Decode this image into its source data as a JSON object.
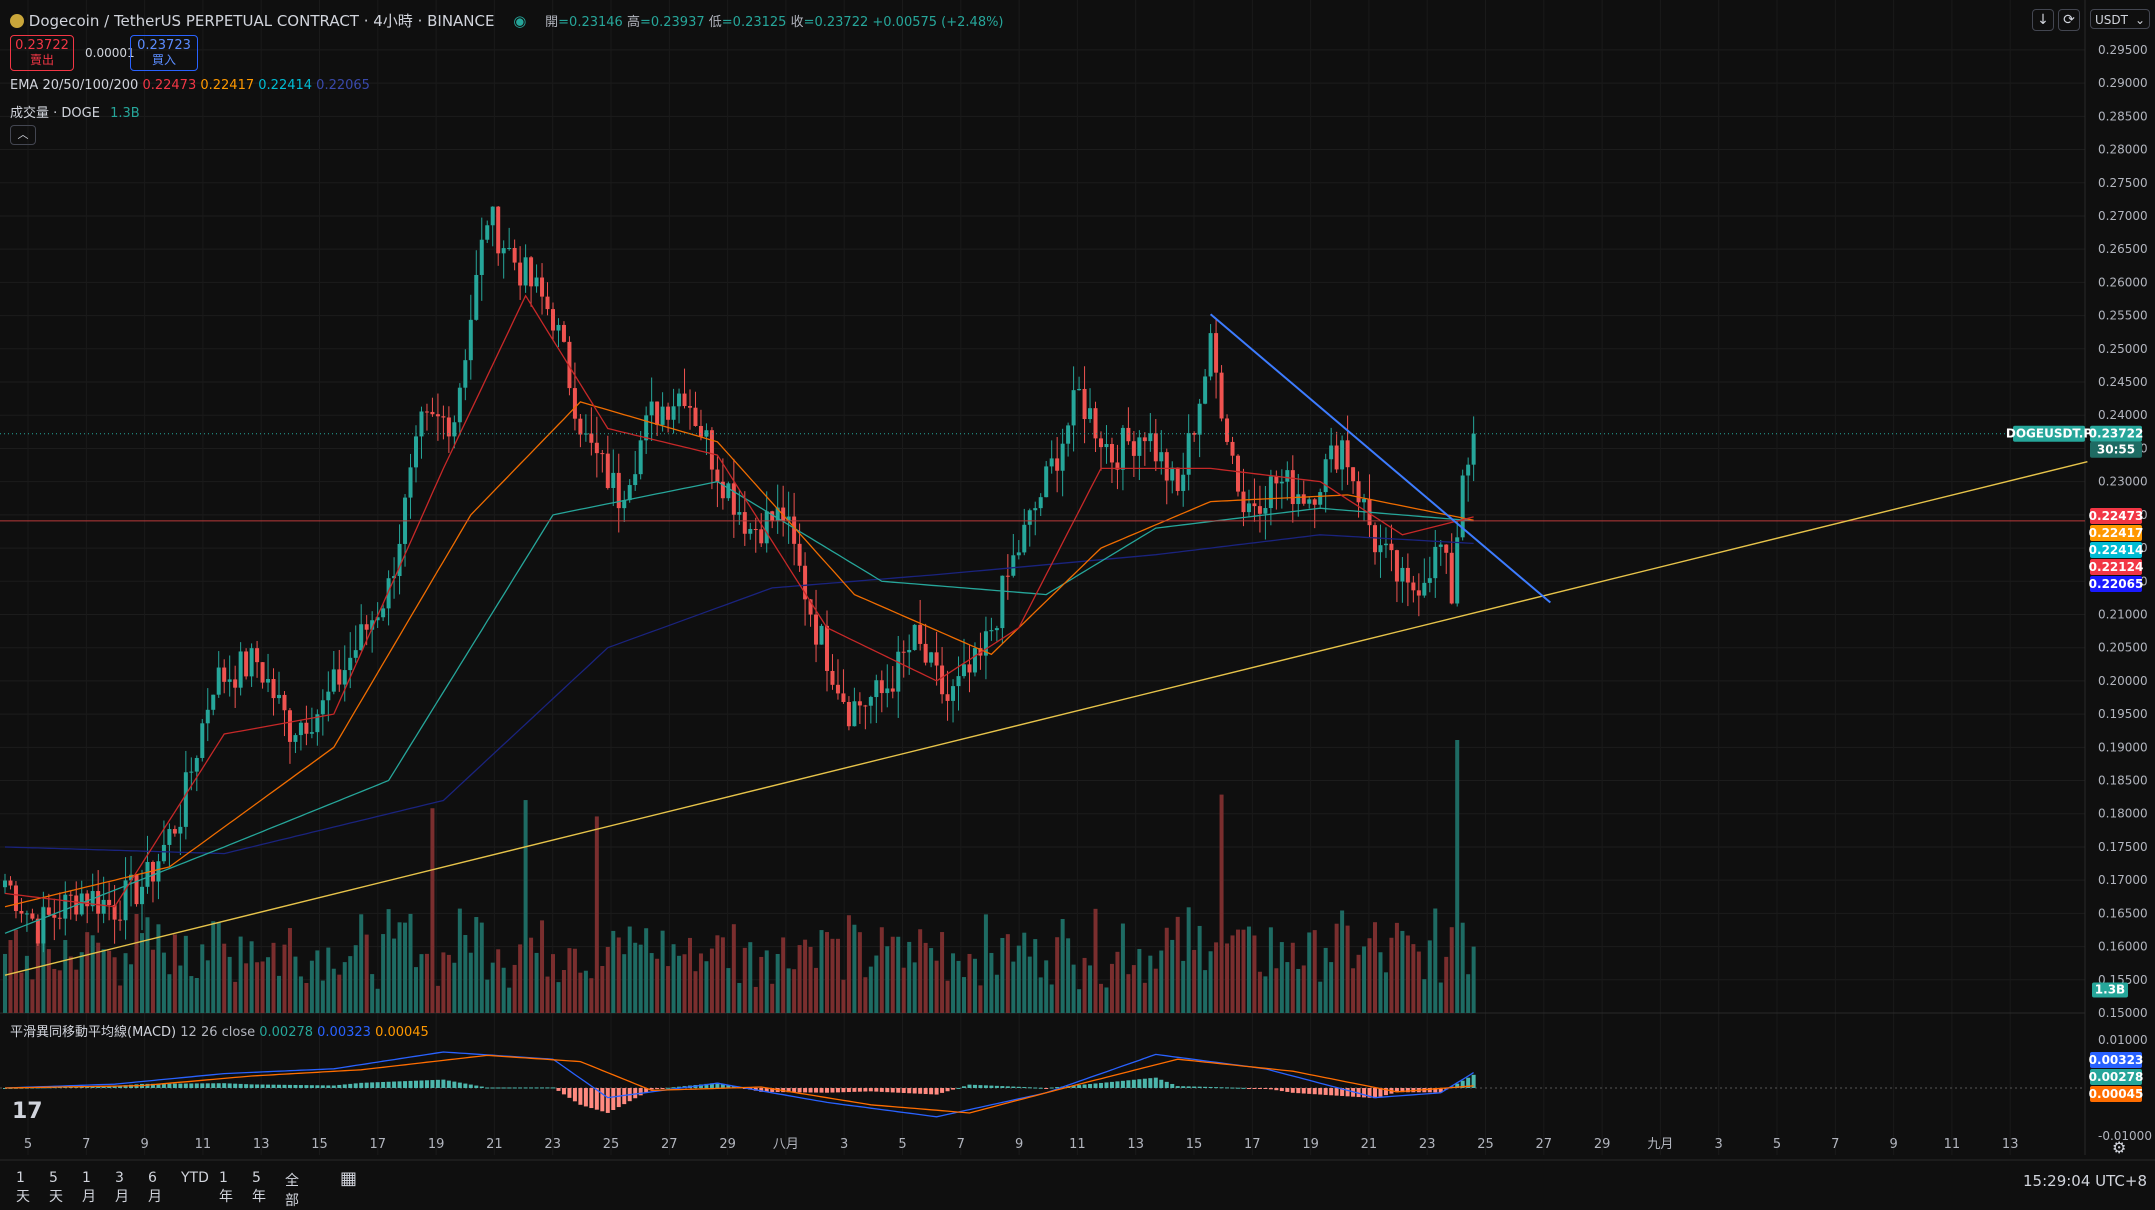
{
  "header": {
    "symbol": "Dogecoin / TetherUS PERPETUAL CONTRACT · 4小時 · BINANCE",
    "ohlc": {
      "open_label": "開",
      "open": "=0.23146",
      "high_label": "高",
      "high": "=0.23937",
      "low_label": "低",
      "low": "=0.23125",
      "close_label": "收",
      "close": "=0.23722",
      "change": "+0.00575 (+2.48%)"
    },
    "sell_price": "0.23722",
    "sell_label": "賣出",
    "spread": "0.00001",
    "buy_price": "0.23723",
    "buy_label": "買入",
    "ema_label": "EMA 20/50/100/200",
    "ema_values": [
      "0.22473",
      "0.22417",
      "0.22414",
      "0.22065"
    ],
    "volume_label": "成交量 · DOGE",
    "volume_value": "1.3B",
    "currency": "USDT"
  },
  "macd": {
    "label": "平滑異同移動平均線(MACD)",
    "params": "12 26 close",
    "values": [
      "0.00278",
      "0.00323",
      "0.00045"
    ]
  },
  "price_axis": {
    "ticks": [
      "0.29500",
      "0.29000",
      "0.28500",
      "0.28000",
      "0.27500",
      "0.27000",
      "0.26500",
      "0.26000",
      "0.25500",
      "0.25000",
      "0.24500",
      "0.24000",
      "0.23500",
      "0.23000",
      "0.22500",
      "0.22000",
      "0.21500",
      "0.21000",
      "0.20500",
      "0.20000",
      "0.19500",
      "0.19000",
      "0.18500",
      "0.18000",
      "0.17500",
      "0.17000",
      "0.16500",
      "0.16000",
      "0.15500",
      "0.15000"
    ],
    "symbol_tag": "DOGEUSDT.P",
    "last_price": "0.23722",
    "countdown": "30:55",
    "labels": [
      {
        "text": "0.22473",
        "color": "#f23645",
        "value": 0.22473
      },
      {
        "text": "0.22417",
        "color": "#ff9800",
        "value": 0.22417
      },
      {
        "text": "0.22414",
        "color": "#00bcd4",
        "value": 0.22414
      },
      {
        "text": "0.22124",
        "color": "#f23645",
        "value": 0.22124
      },
      {
        "text": "0.22065",
        "color": "#1a1aff",
        "value": 0.22065
      }
    ],
    "volume_tag": "1.3B"
  },
  "macd_axis": {
    "ticks": [
      "0.01000",
      "-0.01000"
    ],
    "labels": [
      {
        "text": "0.00323",
        "color": "#2962ff"
      },
      {
        "text": "0.00278",
        "color": "#26a69a"
      },
      {
        "text": "0.00045",
        "color": "#ff6d00"
      }
    ]
  },
  "time_axis": [
    "5",
    "7",
    "9",
    "11",
    "13",
    "15",
    "17",
    "19",
    "21",
    "23",
    "25",
    "27",
    "29",
    "八月",
    "3",
    "5",
    "7",
    "9",
    "11",
    "13",
    "15",
    "17",
    "19",
    "21",
    "23",
    "25",
    "27",
    "29",
    "九月",
    "3",
    "5",
    "7",
    "9",
    "11",
    "13"
  ],
  "bottom_bar": {
    "ranges": [
      "1天",
      "5天",
      "1月",
      "3月",
      "6月",
      "YTD",
      "1年",
      "5年",
      "全部"
    ],
    "clock": "15:29:04 UTC+8"
  },
  "colors": {
    "up": "#26a69a",
    "down": "#ef5350",
    "ema20": "#c62828",
    "ema50": "#ef6c00",
    "ema100": "#26a69a",
    "ema200": "#1a237e",
    "trend_up": "#e6c34a",
    "trend_down": "#3d7cff"
  },
  "chart_data": {
    "type": "candlestick",
    "title": "Dogecoin / TetherUS PERPETUAL CONTRACT · 4小時 · BINANCE",
    "ylim": [
      0.15,
      0.298
    ],
    "x_tick_labels": [
      "5",
      "7",
      "9",
      "11",
      "13",
      "15",
      "17",
      "19",
      "21",
      "23",
      "25",
      "27",
      "29",
      "八月",
      "3",
      "5",
      "7",
      "9",
      "11",
      "13",
      "15",
      "17",
      "19",
      "21",
      "23",
      "25",
      "27",
      "29",
      "九月",
      "3",
      "5",
      "7",
      "9",
      "11",
      "13"
    ],
    "price_anchors": [
      [
        0,
        0.17
      ],
      [
        6,
        0.163
      ],
      [
        14,
        0.168
      ],
      [
        20,
        0.166
      ],
      [
        26,
        0.17
      ],
      [
        32,
        0.18
      ],
      [
        38,
        0.2
      ],
      [
        46,
        0.203
      ],
      [
        52,
        0.193
      ],
      [
        58,
        0.196
      ],
      [
        64,
        0.205
      ],
      [
        70,
        0.214
      ],
      [
        76,
        0.238
      ],
      [
        82,
        0.24
      ],
      [
        88,
        0.27
      ],
      [
        94,
        0.262
      ],
      [
        100,
        0.255
      ],
      [
        106,
        0.236
      ],
      [
        112,
        0.228
      ],
      [
        118,
        0.24
      ],
      [
        124,
        0.244
      ],
      [
        130,
        0.232
      ],
      [
        136,
        0.223
      ],
      [
        142,
        0.225
      ],
      [
        148,
        0.208
      ],
      [
        154,
        0.196
      ],
      [
        160,
        0.198
      ],
      [
        166,
        0.206
      ],
      [
        172,
        0.197
      ],
      [
        178,
        0.203
      ],
      [
        184,
        0.218
      ],
      [
        190,
        0.23
      ],
      [
        196,
        0.243
      ],
      [
        202,
        0.234
      ],
      [
        208,
        0.238
      ],
      [
        214,
        0.228
      ],
      [
        220,
        0.25
      ],
      [
        226,
        0.226
      ],
      [
        232,
        0.23
      ],
      [
        238,
        0.228
      ],
      [
        244,
        0.236
      ],
      [
        250,
        0.221
      ],
      [
        256,
        0.213
      ],
      [
        262,
        0.22
      ],
      [
        264,
        0.213
      ],
      [
        266,
        0.232
      ],
      [
        268,
        0.2372
      ]
    ],
    "ema20_anchors": [
      [
        0,
        0.168
      ],
      [
        20,
        0.166
      ],
      [
        40,
        0.192
      ],
      [
        60,
        0.195
      ],
      [
        80,
        0.232
      ],
      [
        95,
        0.258
      ],
      [
        110,
        0.238
      ],
      [
        130,
        0.234
      ],
      [
        150,
        0.208
      ],
      [
        170,
        0.2
      ],
      [
        185,
        0.208
      ],
      [
        200,
        0.232
      ],
      [
        220,
        0.232
      ],
      [
        240,
        0.23
      ],
      [
        255,
        0.222
      ],
      [
        268,
        0.2247
      ]
    ],
    "ema50_anchors": [
      [
        0,
        0.166
      ],
      [
        30,
        0.172
      ],
      [
        60,
        0.19
      ],
      [
        85,
        0.225
      ],
      [
        105,
        0.242
      ],
      [
        130,
        0.236
      ],
      [
        155,
        0.213
      ],
      [
        180,
        0.204
      ],
      [
        200,
        0.22
      ],
      [
        220,
        0.227
      ],
      [
        245,
        0.228
      ],
      [
        268,
        0.2242
      ]
    ],
    "ema100_anchors": [
      [
        0,
        0.162
      ],
      [
        40,
        0.175
      ],
      [
        70,
        0.185
      ],
      [
        100,
        0.225
      ],
      [
        130,
        0.23
      ],
      [
        160,
        0.215
      ],
      [
        190,
        0.213
      ],
      [
        210,
        0.223
      ],
      [
        240,
        0.226
      ],
      [
        268,
        0.2241
      ]
    ],
    "ema200_anchors": [
      [
        0,
        0.175
      ],
      [
        40,
        0.174
      ],
      [
        80,
        0.182
      ],
      [
        110,
        0.205
      ],
      [
        140,
        0.214
      ],
      [
        170,
        0.216
      ],
      [
        210,
        0.219
      ],
      [
        240,
        0.222
      ],
      [
        268,
        0.2207
      ]
    ],
    "volume_spikes": [
      [
        78,
        0.75
      ],
      [
        95,
        0.78
      ],
      [
        108,
        0.72
      ],
      [
        222,
        0.8
      ],
      [
        265,
        1.0
      ]
    ],
    "hline_value": 0.2241,
    "trendline_up": {
      "from": [
        0,
        0.1557
      ],
      "to": [
        380,
        0.233
      ]
    },
    "trendline_down": {
      "from": [
        220,
        0.2552
      ],
      "to": [
        282,
        0.2118
      ]
    }
  }
}
